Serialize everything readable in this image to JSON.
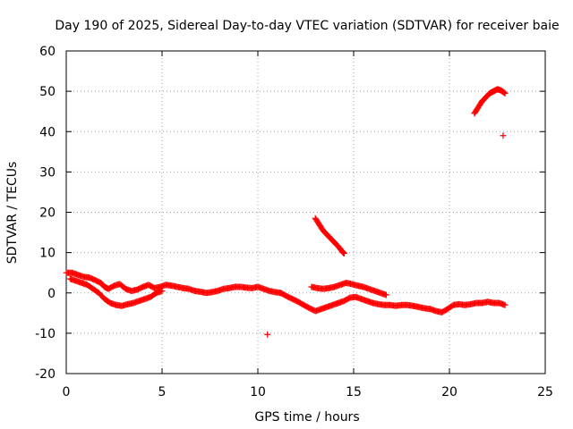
{
  "chart_data": {
    "type": "scatter",
    "title": "Day 190 of 2025, Sidereal Day-to-day VTEC variation (SDTVAR) for receiver baie",
    "xlabel": "GPS time / hours",
    "ylabel": "SDTVAR / TECUs",
    "xlim": [
      0,
      25
    ],
    "ylim": [
      -20,
      60
    ],
    "xticks": [
      0,
      5,
      10,
      15,
      20,
      25
    ],
    "yticks": [
      -20,
      -10,
      0,
      10,
      20,
      30,
      40,
      50,
      60
    ],
    "xtick_labels": [
      "0",
      "5",
      "10",
      "15",
      "20",
      "25"
    ],
    "ytick_labels": [
      "-20",
      "-10",
      "0",
      "10",
      "20",
      "30",
      "40",
      "50",
      "60"
    ],
    "grid": true,
    "marker": "+",
    "color": "#ff0000",
    "series": [
      {
        "name": "track-main-upper",
        "x": [
          0.0,
          0.3,
          0.6,
          0.9,
          1.2,
          1.5,
          1.8,
          2.0,
          2.2,
          2.5,
          2.8,
          3.1,
          3.4,
          3.7,
          4.0,
          4.3,
          4.6,
          4.9,
          5.2,
          5.5,
          5.8,
          6.1,
          6.4,
          6.7,
          7.0,
          7.3,
          7.6,
          7.9,
          8.2,
          8.5,
          8.8,
          9.1,
          9.4,
          9.7,
          10.0,
          10.3,
          10.6,
          10.9,
          11.2
        ],
        "y": [
          5.0,
          5.0,
          4.5,
          4.0,
          3.8,
          3.2,
          2.5,
          1.5,
          1.0,
          1.8,
          2.2,
          1.0,
          0.5,
          0.8,
          1.5,
          2.0,
          1.2,
          1.5,
          2.0,
          1.8,
          1.5,
          1.2,
          1.0,
          0.5,
          0.3,
          0.0,
          0.2,
          0.5,
          1.0,
          1.2,
          1.5,
          1.5,
          1.3,
          1.2,
          1.5,
          1.0,
          0.5,
          0.2,
          0.0
        ]
      },
      {
        "name": "track-main-lower",
        "x": [
          0.2,
          0.5,
          0.8,
          1.1,
          1.4,
          1.7,
          2.0,
          2.3,
          2.6,
          2.9,
          3.2,
          3.5,
          3.8,
          4.1,
          4.4,
          4.7,
          5.0
        ],
        "y": [
          3.5,
          3.0,
          2.5,
          2.0,
          1.0,
          0.0,
          -1.5,
          -2.5,
          -3.0,
          -3.2,
          -2.8,
          -2.5,
          -2.0,
          -1.5,
          -1.0,
          0.0,
          0.5
        ]
      },
      {
        "name": "track-descending-11-13.5",
        "x": [
          11.2,
          11.5,
          11.8,
          12.1,
          12.4,
          12.7,
          13.0,
          13.3,
          13.6,
          13.9,
          14.2,
          14.5,
          14.8,
          15.1,
          15.4,
          15.7,
          16.0,
          16.3,
          16.6,
          16.9,
          17.2,
          17.5,
          17.8,
          18.1,
          18.4,
          18.7,
          19.0,
          19.3,
          19.6,
          19.9,
          20.2,
          20.5,
          20.8,
          21.1,
          21.4,
          21.7,
          22.0,
          22.3,
          22.6,
          22.9
        ],
        "y": [
          0.0,
          -0.8,
          -1.5,
          -2.2,
          -3.0,
          -3.8,
          -4.5,
          -4.0,
          -3.5,
          -3.0,
          -2.5,
          -2.0,
          -1.2,
          -1.0,
          -1.5,
          -2.0,
          -2.5,
          -2.8,
          -3.0,
          -3.0,
          -3.2,
          -3.0,
          -3.0,
          -3.2,
          -3.5,
          -3.8,
          -4.0,
          -4.5,
          -4.8,
          -4.0,
          -3.0,
          -2.8,
          -3.0,
          -2.8,
          -2.5,
          -2.5,
          -2.2,
          -2.5,
          -2.5,
          -3.0
        ]
      },
      {
        "name": "track-mid-12.8-16.8",
        "x": [
          12.8,
          13.1,
          13.4,
          13.7,
          14.0,
          14.3,
          14.6,
          14.9,
          15.2,
          15.5,
          15.8,
          16.1,
          16.4,
          16.7
        ],
        "y": [
          1.5,
          1.2,
          1.0,
          1.2,
          1.5,
          2.0,
          2.5,
          2.2,
          1.8,
          1.5,
          1.0,
          0.5,
          0.0,
          -0.5
        ]
      },
      {
        "name": "track-steep-13-14.5",
        "x": [
          13.0,
          13.2,
          13.4,
          13.6,
          13.8,
          14.0,
          14.2,
          14.4,
          14.5
        ],
        "y": [
          18.5,
          17.0,
          15.5,
          14.5,
          13.5,
          12.5,
          11.5,
          10.3,
          9.8
        ]
      },
      {
        "name": "track-rising-21.3-22.9",
        "x": [
          21.3,
          21.5,
          21.7,
          21.9,
          22.1,
          22.3,
          22.5,
          22.7,
          22.9
        ],
        "y": [
          44.5,
          46.0,
          47.5,
          48.5,
          49.5,
          50.0,
          50.5,
          50.2,
          49.5
        ]
      },
      {
        "name": "outliers",
        "x": [
          10.5,
          22.8
        ],
        "y": [
          -10.3,
          39.0
        ]
      }
    ]
  }
}
